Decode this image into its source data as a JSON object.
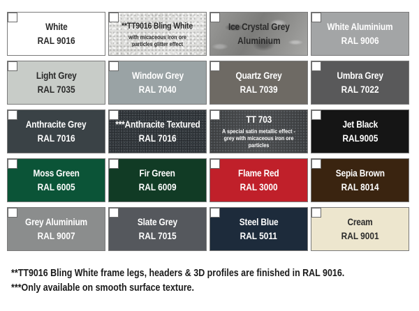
{
  "swatches": [
    {
      "name": "White",
      "code": "RAL 9016",
      "note": "",
      "color": "#ffffff"
    },
    {
      "name": "**TT9016 Bling White",
      "code": "",
      "note": "with micaceous iron ore particles glitter effect",
      "color": "#dedede"
    },
    {
      "name": "Ice Crystal Grey",
      "code": "Aluminium",
      "note": "",
      "color": "#8e8e8c"
    },
    {
      "name": "White Aluminium",
      "code": "RAL 9006",
      "note": "",
      "color": "#a3a5a6"
    },
    {
      "name": "Light Grey",
      "code": "RAL 7035",
      "note": "",
      "color": "#c8ccc8"
    },
    {
      "name": "Window Grey",
      "code": "RAL 7040",
      "note": "",
      "color": "#9aa3a5"
    },
    {
      "name": "Quartz Grey",
      "code": "RAL 7039",
      "note": "",
      "color": "#6e6a64"
    },
    {
      "name": "Umbra Grey",
      "code": "RAL 7022",
      "note": "",
      "color": "#59595a"
    },
    {
      "name": "Anthracite Grey",
      "code": "RAL 7016",
      "note": "",
      "color": "#3a4246"
    },
    {
      "name": "***Anthracite Textured",
      "code": "RAL 7016",
      "note": "",
      "color": "#3b4247"
    },
    {
      "name": "TT 703",
      "code": "",
      "note": "A special satin metallic effect - grey with micaceous iron ore particles",
      "color": "#424446"
    },
    {
      "name": "Jet Black",
      "code": "RAL9005",
      "note": "",
      "color": "#151515"
    },
    {
      "name": "Moss Green",
      "code": "RAL 6005",
      "note": "",
      "color": "#0b5437"
    },
    {
      "name": "Fir Green",
      "code": "RAL 6009",
      "note": "",
      "color": "#113b25"
    },
    {
      "name": "Flame Red",
      "code": "RAL 3000",
      "note": "",
      "color": "#c0202a"
    },
    {
      "name": "Sepia Brown",
      "code": "RAL 8014",
      "note": "",
      "color": "#3a2410"
    },
    {
      "name": "Grey Aluminium",
      "code": "RAL 9007",
      "note": "",
      "color": "#8b8d8d"
    },
    {
      "name": "Slate Grey",
      "code": "RAL 7015",
      "note": "",
      "color": "#55585d"
    },
    {
      "name": "Steel Blue",
      "code": "RAL 5011",
      "note": "",
      "color": "#1d2b3b"
    },
    {
      "name": "Cream",
      "code": "RAL 9001",
      "note": "",
      "color": "#ede6ce"
    }
  ],
  "footnotes": [
    "**TT9016 Bling White frame legs, headers & 3D profiles are finished in RAL 9016.",
    "***Only available on smooth surface texture."
  ]
}
